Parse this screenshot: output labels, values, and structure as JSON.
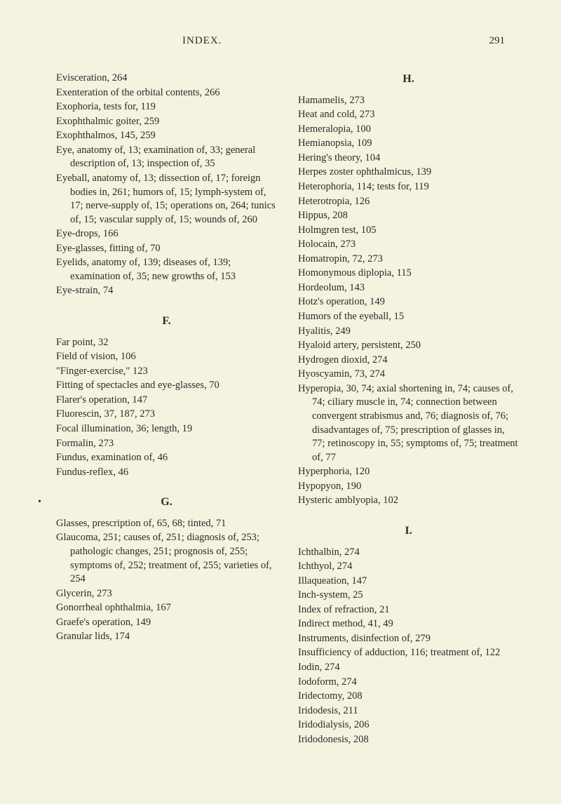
{
  "header": {
    "title": "INDEX.",
    "pageNumber": "291"
  },
  "leftColumn": {
    "entries1": [
      "Evisceration, 264",
      "Exenteration of the orbital contents, 266",
      "Exophoria, tests for, 119",
      "Exophthalmic goiter, 259",
      "Exophthalmos, 145, 259",
      "Eye, anatomy of, 13; examination of, 33; general description of, 13; inspection of, 35",
      "Eyeball, anatomy of, 13; dissection of, 17; foreign bodies in, 261; humors of, 15; lymph-system of, 17; nerve-supply of, 15; operations on, 264; tunics of, 15; vascular supply of, 15; wounds of, 260",
      "Eye-drops, 166",
      "Eye-glasses, fitting of, 70",
      "Eyelids, anatomy of, 139; diseases of, 139; examination of, 35; new growths of, 153",
      "Eye-strain, 74"
    ],
    "sectionF": "F.",
    "entriesF": [
      "Far point, 32",
      "Field of vision, 106",
      "\"Finger-exercise,\" 123",
      "Fitting of spectacles and eye-glasses, 70",
      "Flarer's operation, 147",
      "Fluorescin, 37, 187, 273",
      "Focal illumination, 36; length, 19",
      "Formalin, 273",
      "Fundus, examination of, 46",
      "Fundus-reflex, 46"
    ],
    "sectionG": "G.",
    "entriesG": [
      "Glasses, prescription of, 65, 68; tinted, 71",
      "Glaucoma, 251; causes of, 251; diagnosis of, 253; pathologic changes, 251; prognosis of, 255; symptoms of, 252; treatment of, 255; varieties of, 254",
      "Glycerin, 273",
      "Gonorrheal ophthalmia, 167",
      "Graefe's operation, 149",
      "Granular lids, 174"
    ]
  },
  "rightColumn": {
    "sectionH": "H.",
    "entriesH": [
      "Hamamelis, 273",
      "Heat and cold, 273",
      "Hemeralopia, 100",
      "Hemianopsia, 109",
      "Hering's theory, 104",
      "Herpes zoster ophthalmicus, 139",
      "Heterophoria, 114; tests for, 119",
      "Heterotropia, 126",
      "Hippus, 208",
      "Holmgren test, 105",
      "Holocain, 273",
      "Homatropin, 72, 273",
      "Homonymous diplopia, 115",
      "Hordeolum, 143",
      "Hotz's operation, 149",
      "Humors of the eyeball, 15",
      "Hyalitis, 249",
      "Hyaloid artery, persistent, 250",
      "Hydrogen dioxid, 274",
      "Hyoscyamin, 73, 274",
      "Hyperopia, 30, 74; axial shortening in, 74; causes of, 74; ciliary muscle in, 74; connection between convergent strabismus and, 76; diagnosis of, 76; disadvantages of, 75; prescription of glasses in, 77; retinoscopy in, 55; symptoms of, 75; treatment of, 77",
      "Hyperphoria, 120",
      "Hypopyon, 190",
      "Hysteric amblyopia, 102"
    ],
    "sectionI": "I.",
    "entriesI": [
      "Ichthalbin, 274",
      "Ichthyol, 274",
      "Illaqueation, 147",
      "Inch-system, 25",
      "Index of refraction, 21",
      "Indirect method, 41, 49",
      "Instruments, disinfection of, 279",
      "Insufficiency of adduction, 116; treatment of, 122",
      "Iodin, 274",
      "Iodoform, 274",
      "Iridectomy, 208",
      "Iridodesis, 211",
      "Iridodialysis, 206",
      "Iridodonesis, 208"
    ]
  },
  "marginDot": "•"
}
